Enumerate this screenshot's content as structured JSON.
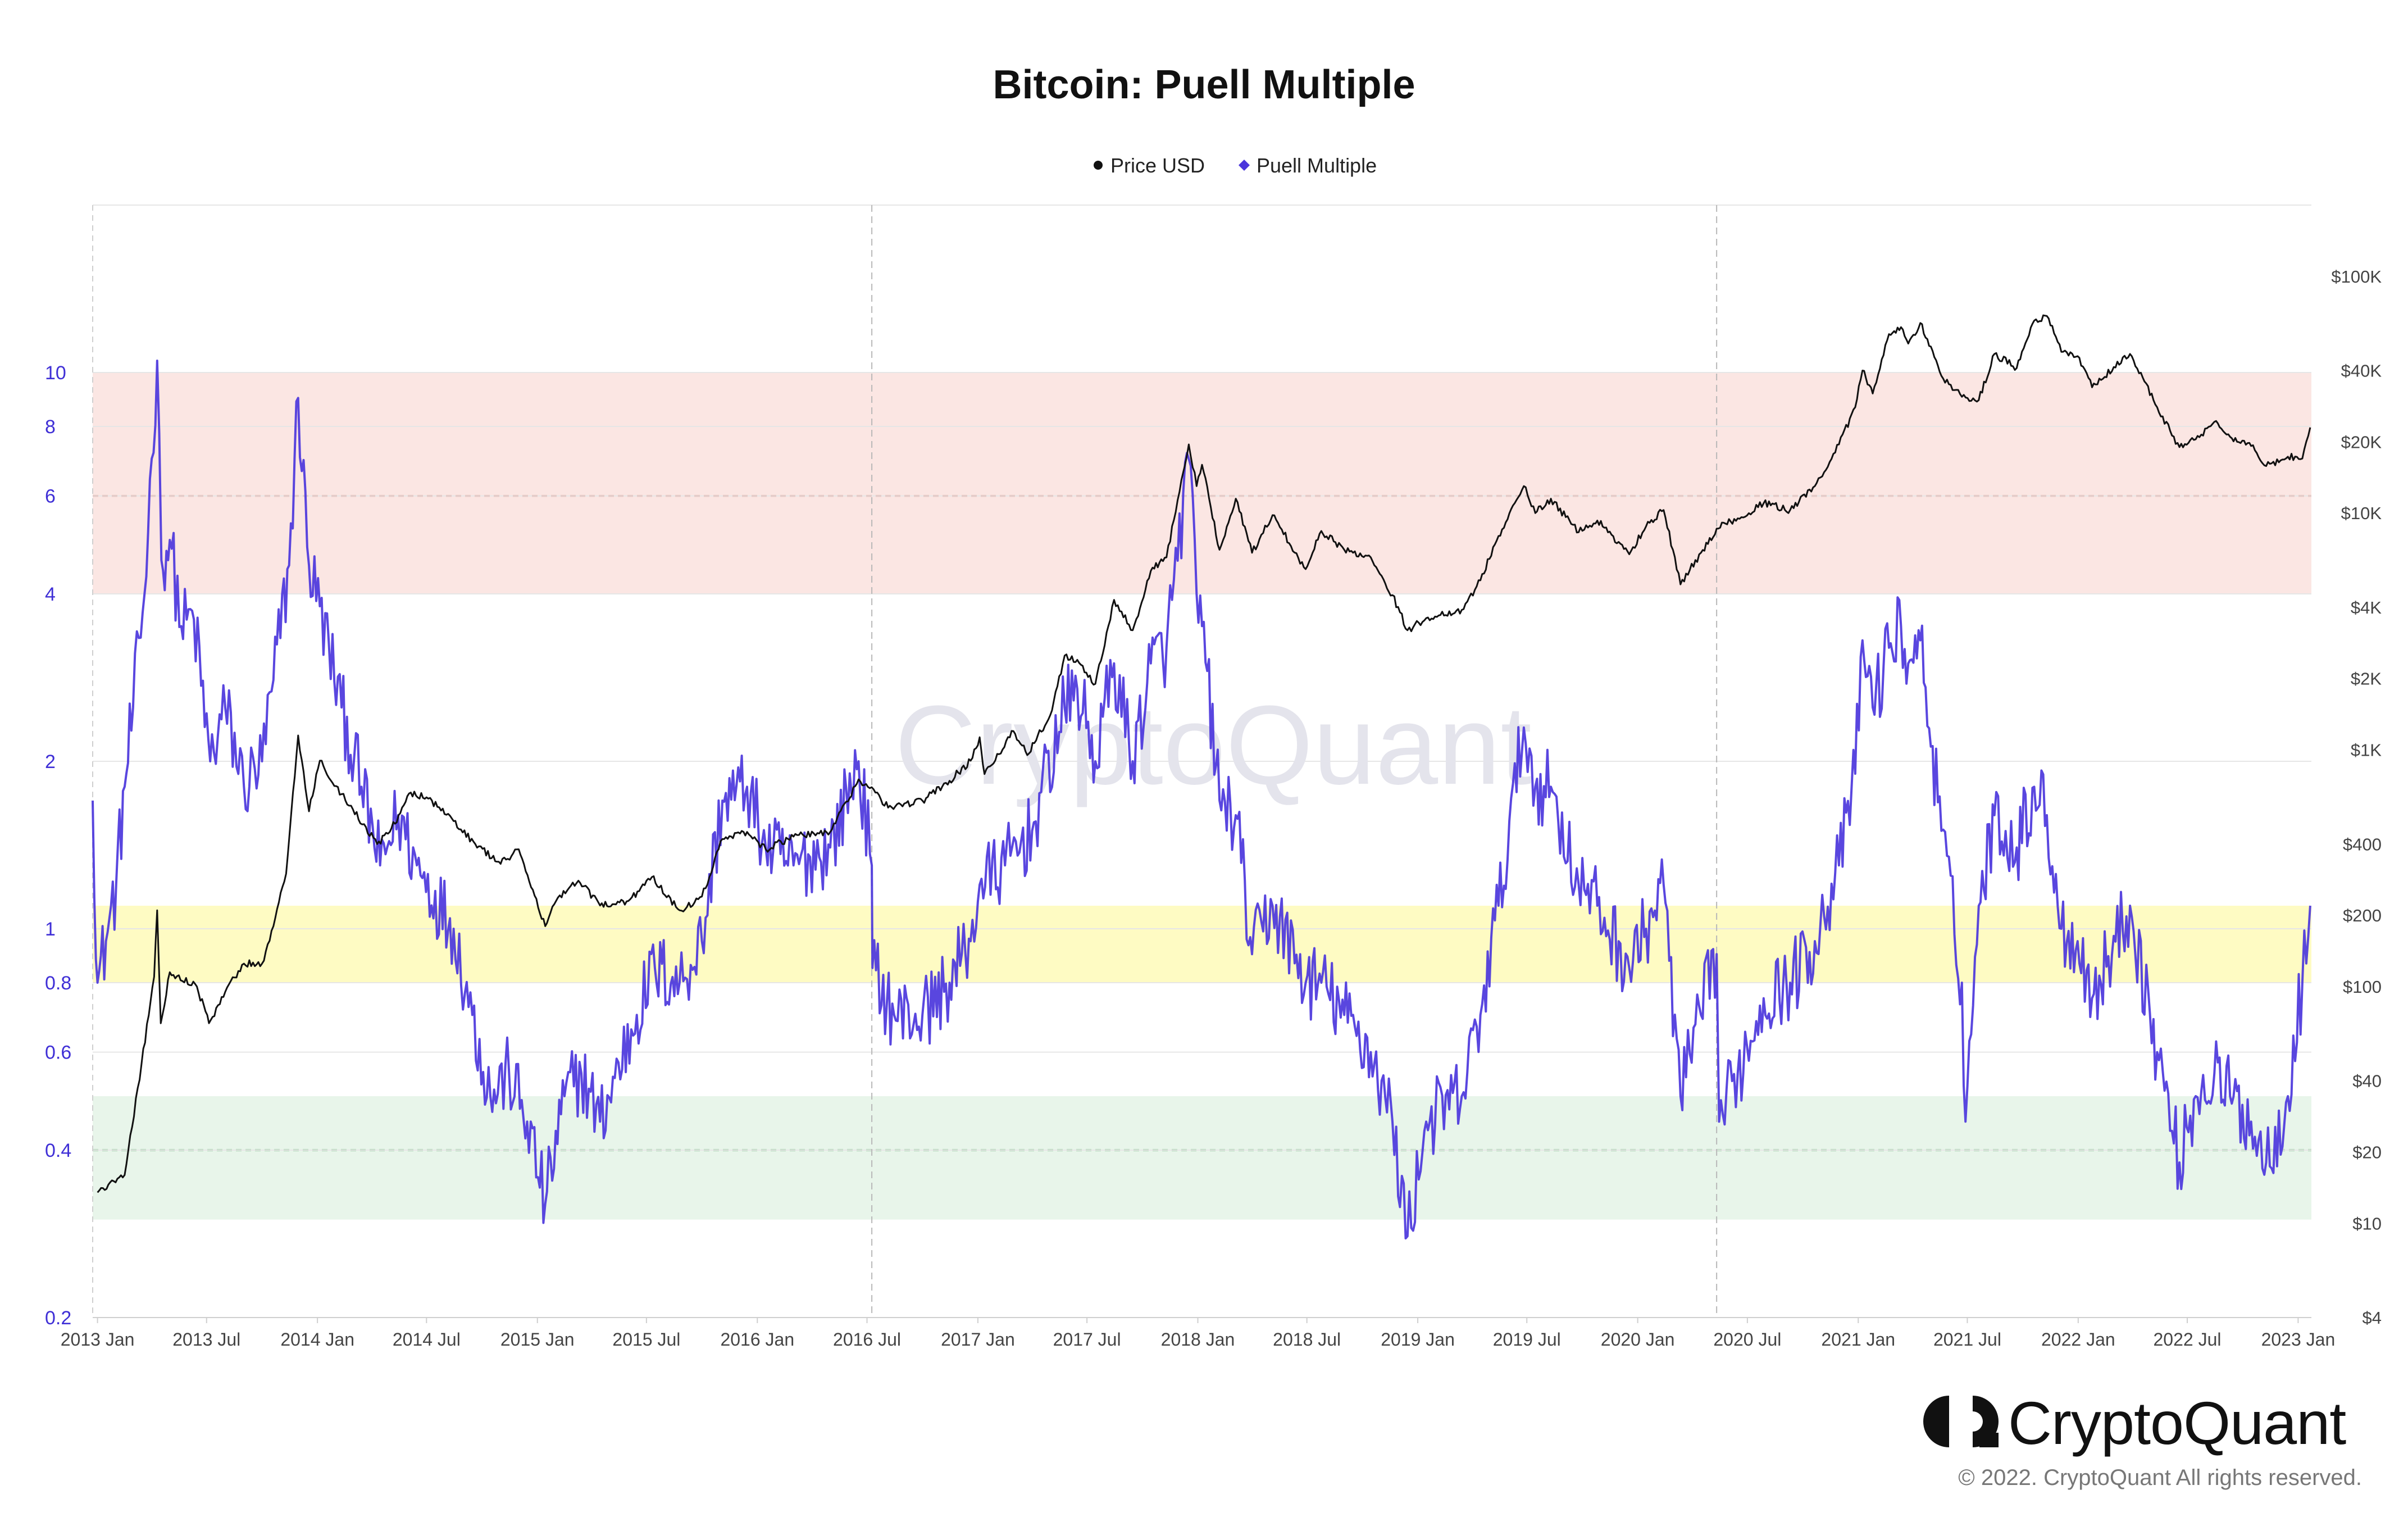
{
  "chart_data": {
    "type": "line",
    "title": "Bitcoin: Puell Multiple",
    "legend": [
      "Price USD",
      "Puell Multiple"
    ],
    "legend_placement": "top-center",
    "watermark": "CryptoQuant",
    "grid": true,
    "x_ticks": [
      "2013 Jan",
      "2013 Jul",
      "2014 Jan",
      "2014 Jul",
      "2015 Jan",
      "2015 Jul",
      "2016 Jan",
      "2016 Jul",
      "2017 Jan",
      "2017 Jul",
      "2018 Jan",
      "2018 Jul",
      "2019 Jan",
      "2019 Jul",
      "2020 Jan",
      "2020 Jul",
      "2021 Jan",
      "2021 Jul",
      "2022 Jan",
      "2022 Jul",
      "2023 Jan"
    ],
    "x_range": [
      "2012-12-24",
      "2023-01-23"
    ],
    "halving_dates": [
      "2016-07-09",
      "2020-05-11"
    ],
    "left_axis": {
      "scale": "log",
      "range": [
        0.2,
        20
      ],
      "ticks": [
        "0.2",
        "0.4",
        "0.6",
        "0.8",
        "1",
        "2",
        "4",
        "6",
        "8",
        "10"
      ],
      "color": "#3f2fd6"
    },
    "right_axis": {
      "scale": "log",
      "range": [
        4,
        200000
      ],
      "ticks": [
        "$4",
        "$10",
        "$20",
        "$40",
        "$100",
        "$200",
        "$400",
        "$1K",
        "$2K",
        "$4K",
        "$10K",
        "$20K",
        "$40K",
        "$100K"
      ]
    },
    "bands": [
      {
        "zone": "high",
        "from": 4,
        "to": 10,
        "line": 6,
        "color": "#fbe6e3"
      },
      {
        "zone": "neutral",
        "from": 0.8,
        "to": 1.1,
        "color": "#fefbc3"
      },
      {
        "zone": "low",
        "from": 0.3,
        "to": 0.5,
        "line": 0.4,
        "color": "#e8f5ea"
      }
    ],
    "series": [
      {
        "name": "Price USD",
        "color": "#111111",
        "axis": "right",
        "points": [
          [
            "2013-01-01",
            13.5
          ],
          [
            "2013-02-15",
            16
          ],
          [
            "2013-03-15",
            47
          ],
          [
            "2013-04-05",
            110
          ],
          [
            "2013-04-10",
            210
          ],
          [
            "2013-04-16",
            70
          ],
          [
            "2013-05-01",
            115
          ],
          [
            "2013-06-15",
            100
          ],
          [
            "2013-07-05",
            70
          ],
          [
            "2013-08-01",
            95
          ],
          [
            "2013-09-01",
            125
          ],
          [
            "2013-10-01",
            125
          ],
          [
            "2013-10-20",
            180
          ],
          [
            "2013-11-10",
            300
          ],
          [
            "2013-11-30",
            1150
          ],
          [
            "2013-12-18",
            550
          ],
          [
            "2014-01-05",
            900
          ],
          [
            "2014-02-10",
            650
          ],
          [
            "2014-03-01",
            560
          ],
          [
            "2014-04-10",
            400
          ],
          [
            "2014-05-01",
            450
          ],
          [
            "2014-06-05",
            660
          ],
          [
            "2014-07-01",
            630
          ],
          [
            "2014-08-15",
            500
          ],
          [
            "2014-09-20",
            400
          ],
          [
            "2014-11-01",
            330
          ],
          [
            "2014-12-01",
            380
          ],
          [
            "2015-01-14",
            180
          ],
          [
            "2015-02-01",
            230
          ],
          [
            "2015-03-10",
            280
          ],
          [
            "2015-04-15",
            220
          ],
          [
            "2015-06-01",
            230
          ],
          [
            "2015-07-10",
            290
          ],
          [
            "2015-08-25",
            210
          ],
          [
            "2015-10-01",
            240
          ],
          [
            "2015-11-04",
            420
          ],
          [
            "2015-12-15",
            450
          ],
          [
            "2016-01-15",
            380
          ],
          [
            "2016-03-01",
            430
          ],
          [
            "2016-05-01",
            450
          ],
          [
            "2016-06-17",
            750
          ],
          [
            "2016-07-15",
            660
          ],
          [
            "2016-08-05",
            570
          ],
          [
            "2016-10-01",
            610
          ],
          [
            "2016-11-15",
            740
          ],
          [
            "2016-12-20",
            900
          ],
          [
            "2017-01-04",
            1130
          ],
          [
            "2017-01-12",
            790
          ],
          [
            "2017-03-01",
            1200
          ],
          [
            "2017-03-24",
            950
          ],
          [
            "2017-05-01",
            1400
          ],
          [
            "2017-05-25",
            2500
          ],
          [
            "2017-06-15",
            2400
          ],
          [
            "2017-07-15",
            1900
          ],
          [
            "2017-08-15",
            4300
          ],
          [
            "2017-09-15",
            3200
          ],
          [
            "2017-10-15",
            5700
          ],
          [
            "2017-11-10",
            6500
          ],
          [
            "2017-12-17",
            19500
          ],
          [
            "2017-12-30",
            13000
          ],
          [
            "2018-01-08",
            16000
          ],
          [
            "2018-02-06",
            7000
          ],
          [
            "2018-03-05",
            11500
          ],
          [
            "2018-04-01",
            6800
          ],
          [
            "2018-05-05",
            9800
          ],
          [
            "2018-06-29",
            5800
          ],
          [
            "2018-07-25",
            8400
          ],
          [
            "2018-09-01",
            7000
          ],
          [
            "2018-10-15",
            6500
          ],
          [
            "2018-11-20",
            4500
          ],
          [
            "2018-12-15",
            3200
          ],
          [
            "2019-01-15",
            3600
          ],
          [
            "2019-03-15",
            3900
          ],
          [
            "2019-04-15",
            5200
          ],
          [
            "2019-05-15",
            8000
          ],
          [
            "2019-06-26",
            13000
          ],
          [
            "2019-07-15",
            10000
          ],
          [
            "2019-08-10",
            11500
          ],
          [
            "2019-09-25",
            8300
          ],
          [
            "2019-10-26",
            9300
          ],
          [
            "2019-12-18",
            6700
          ],
          [
            "2020-01-15",
            8800
          ],
          [
            "2020-02-13",
            10300
          ],
          [
            "2020-03-12",
            5000
          ],
          [
            "2020-04-15",
            6800
          ],
          [
            "2020-05-11",
            8600
          ],
          [
            "2020-06-15",
            9500
          ],
          [
            "2020-07-28",
            11000
          ],
          [
            "2020-09-10",
            10300
          ],
          [
            "2020-10-21",
            13000
          ],
          [
            "2020-11-30",
            19500
          ],
          [
            "2020-12-27",
            28000
          ],
          [
            "2021-01-08",
            40000
          ],
          [
            "2021-01-25",
            32000
          ],
          [
            "2021-02-21",
            57000
          ],
          [
            "2021-03-13",
            61000
          ],
          [
            "2021-03-25",
            52000
          ],
          [
            "2021-04-14",
            63500
          ],
          [
            "2021-05-19",
            38000
          ],
          [
            "2021-06-22",
            31000
          ],
          [
            "2021-07-20",
            30000
          ],
          [
            "2021-08-15",
            47000
          ],
          [
            "2021-09-21",
            41000
          ],
          [
            "2021-10-20",
            65000
          ],
          [
            "2021-11-10",
            68000
          ],
          [
            "2021-12-04",
            48000
          ],
          [
            "2021-12-31",
            46000
          ],
          [
            "2022-01-24",
            34000
          ],
          [
            "2022-03-28",
            47000
          ],
          [
            "2022-05-12",
            28000
          ],
          [
            "2022-06-18",
            19000
          ],
          [
            "2022-07-15",
            20500
          ],
          [
            "2022-08-15",
            24300
          ],
          [
            "2022-09-10",
            21000
          ],
          [
            "2022-10-15",
            19200
          ],
          [
            "2022-11-09",
            15800
          ],
          [
            "2022-12-15",
            17300
          ],
          [
            "2023-01-08",
            17000
          ],
          [
            "2023-01-21",
            23000
          ]
        ]
      },
      {
        "name": "Puell Multiple",
        "color": "#4b36dc",
        "axis": "left",
        "points": [
          [
            "2012-12-24",
            1.7
          ],
          [
            "2013-01-01",
            0.8
          ],
          [
            "2013-01-15",
            0.95
          ],
          [
            "2013-02-01",
            1.2
          ],
          [
            "2013-02-15",
            1.8
          ],
          [
            "2013-03-01",
            2.5
          ],
          [
            "2013-03-20",
            4.0
          ],
          [
            "2013-04-01",
            7.0
          ],
          [
            "2013-04-10",
            10.5
          ],
          [
            "2013-04-17",
            4.6
          ],
          [
            "2013-05-01",
            5.0
          ],
          [
            "2013-05-20",
            3.5
          ],
          [
            "2013-06-10",
            3.6
          ],
          [
            "2013-07-07",
            2.0
          ],
          [
            "2013-08-01",
            2.5
          ],
          [
            "2013-09-01",
            1.8
          ],
          [
            "2013-10-01",
            2.0
          ],
          [
            "2013-10-20",
            2.8
          ],
          [
            "2013-11-15",
            4.5
          ],
          [
            "2013-11-30",
            9.0
          ],
          [
            "2013-12-18",
            4.5
          ],
          [
            "2014-01-05",
            3.8
          ],
          [
            "2014-02-10",
            2.5
          ],
          [
            "2014-03-15",
            1.8
          ],
          [
            "2014-04-15",
            1.3
          ],
          [
            "2014-05-15",
            1.6
          ],
          [
            "2014-06-15",
            1.3
          ],
          [
            "2014-08-15",
            1.0
          ],
          [
            "2014-09-15",
            0.7
          ],
          [
            "2014-10-15",
            0.5
          ],
          [
            "2014-11-15",
            0.55
          ],
          [
            "2014-12-15",
            0.45
          ],
          [
            "2015-01-14",
            0.32
          ],
          [
            "2015-02-15",
            0.5
          ],
          [
            "2015-03-15",
            0.55
          ],
          [
            "2015-04-15",
            0.45
          ],
          [
            "2015-06-15",
            0.7
          ],
          [
            "2015-07-15",
            0.85
          ],
          [
            "2015-08-25",
            0.8
          ],
          [
            "2015-10-01",
            0.95
          ],
          [
            "2015-11-04",
            1.7
          ],
          [
            "2015-12-15",
            1.8
          ],
          [
            "2016-01-15",
            1.4
          ],
          [
            "2016-03-01",
            1.3
          ],
          [
            "2016-05-01",
            1.4
          ],
          [
            "2016-06-17",
            2.0
          ],
          [
            "2016-07-09",
            1.3
          ],
          [
            "2016-07-10",
            0.85
          ],
          [
            "2016-08-15",
            0.7
          ],
          [
            "2016-10-01",
            0.7
          ],
          [
            "2016-11-15",
            0.8
          ],
          [
            "2016-12-20",
            0.95
          ],
          [
            "2017-01-04",
            1.2
          ],
          [
            "2017-02-15",
            1.3
          ],
          [
            "2017-04-01",
            1.5
          ],
          [
            "2017-05-25",
            2.5
          ],
          [
            "2017-06-15",
            2.7
          ],
          [
            "2017-07-15",
            2.0
          ],
          [
            "2017-08-15",
            3.0
          ],
          [
            "2017-09-15",
            2.0
          ],
          [
            "2017-10-15",
            3.0
          ],
          [
            "2017-11-10",
            3.2
          ],
          [
            "2017-12-17",
            7.0
          ],
          [
            "2017-12-30",
            4.0
          ],
          [
            "2018-01-08",
            3.5
          ],
          [
            "2018-02-06",
            1.7
          ],
          [
            "2018-03-05",
            1.6
          ],
          [
            "2018-04-01",
            0.9
          ],
          [
            "2018-05-05",
            1.1
          ],
          [
            "2018-06-29",
            0.8
          ],
          [
            "2018-07-25",
            0.8
          ],
          [
            "2018-09-01",
            0.7
          ],
          [
            "2018-10-15",
            0.6
          ],
          [
            "2018-11-20",
            0.45
          ],
          [
            "2018-12-15",
            0.28
          ],
          [
            "2019-01-15",
            0.45
          ],
          [
            "2019-03-15",
            0.5
          ],
          [
            "2019-04-15",
            0.7
          ],
          [
            "2019-05-15",
            1.1
          ],
          [
            "2019-06-26",
            2.3
          ],
          [
            "2019-07-15",
            1.8
          ],
          [
            "2019-08-10",
            1.8
          ],
          [
            "2019-09-25",
            1.2
          ],
          [
            "2019-10-26",
            1.1
          ],
          [
            "2019-12-18",
            0.85
          ],
          [
            "2020-01-15",
            1.0
          ],
          [
            "2020-02-13",
            1.2
          ],
          [
            "2020-03-12",
            0.5
          ],
          [
            "2020-04-15",
            0.7
          ],
          [
            "2020-05-11",
            0.9
          ],
          [
            "2020-05-15",
            0.45
          ],
          [
            "2020-06-15",
            0.55
          ],
          [
            "2020-07-28",
            0.75
          ],
          [
            "2020-09-10",
            0.8
          ],
          [
            "2020-10-21",
            0.95
          ],
          [
            "2020-11-30",
            1.3
          ],
          [
            "2020-12-27",
            1.9
          ],
          [
            "2021-01-08",
            3.3
          ],
          [
            "2021-01-25",
            2.5
          ],
          [
            "2021-02-21",
            3.2
          ],
          [
            "2021-03-13",
            3.5
          ],
          [
            "2021-03-25",
            3.0
          ],
          [
            "2021-04-14",
            3.3
          ],
          [
            "2021-05-19",
            1.5
          ],
          [
            "2021-06-22",
            0.8
          ],
          [
            "2021-06-28",
            0.45
          ],
          [
            "2021-07-20",
            1.1
          ],
          [
            "2021-08-15",
            1.6
          ],
          [
            "2021-09-21",
            1.4
          ],
          [
            "2021-10-20",
            1.8
          ],
          [
            "2021-11-10",
            1.6
          ],
          [
            "2021-12-04",
            1.0
          ],
          [
            "2021-12-31",
            0.95
          ],
          [
            "2022-01-24",
            0.75
          ],
          [
            "2022-03-28",
            1.1
          ],
          [
            "2022-05-12",
            0.6
          ],
          [
            "2022-06-18",
            0.38
          ],
          [
            "2022-07-15",
            0.5
          ],
          [
            "2022-08-15",
            0.55
          ],
          [
            "2022-09-10",
            0.5
          ],
          [
            "2022-10-15",
            0.45
          ],
          [
            "2022-11-09",
            0.38
          ],
          [
            "2022-12-15",
            0.5
          ],
          [
            "2023-01-08",
            0.8
          ],
          [
            "2023-01-21",
            1.1
          ]
        ]
      }
    ]
  },
  "brand": {
    "name": "CryptoQuant",
    "copyright": "© 2022. CryptoQuant All rights reserved."
  }
}
